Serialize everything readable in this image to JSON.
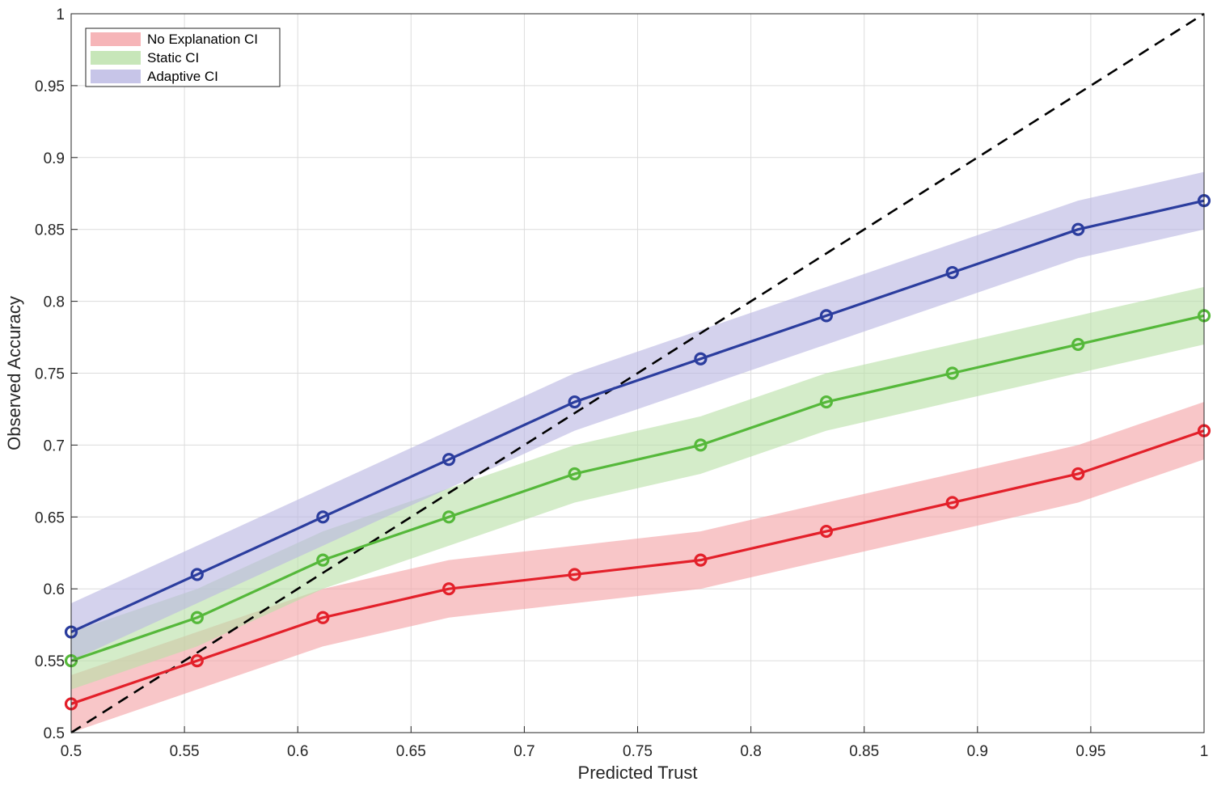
{
  "chart_data": {
    "type": "line",
    "title": "",
    "xlabel": "Predicted Trust",
    "ylabel": "Observed Accuracy",
    "xlim": [
      0.5,
      1
    ],
    "ylim": [
      0.5,
      1
    ],
    "grid": true,
    "legend_position": "top-left",
    "x": [
      0.5,
      0.5556,
      0.6111,
      0.6667,
      0.7222,
      0.7778,
      0.8333,
      0.8889,
      0.9444,
      1.0
    ],
    "xticks": [
      "0.5",
      "0.55",
      "0.6",
      "0.65",
      "0.7",
      "0.75",
      "0.8",
      "0.85",
      "0.9",
      "0.95",
      "1"
    ],
    "xtick_values": [
      0.5,
      0.55,
      0.6,
      0.65,
      0.7,
      0.75,
      0.8,
      0.85,
      0.9,
      0.95,
      1
    ],
    "yticks": [
      "0.5",
      "0.55",
      "0.6",
      "0.65",
      "0.7",
      "0.75",
      "0.8",
      "0.85",
      "0.9",
      "0.95",
      "1"
    ],
    "ytick_values": [
      0.5,
      0.55,
      0.6,
      0.65,
      0.7,
      0.75,
      0.8,
      0.85,
      0.9,
      0.95,
      1
    ],
    "reference_line": {
      "from": [
        0.5,
        0.5
      ],
      "to": [
        1,
        1
      ],
      "style": "dashed",
      "color": "#000000"
    },
    "series": [
      {
        "name": "No Explanation",
        "ci_label": "No Explanation CI",
        "color": "#e3202a",
        "ci_color": "#f4a3a6",
        "values": [
          0.52,
          0.55,
          0.58,
          0.6,
          0.61,
          0.62,
          0.64,
          0.66,
          0.68,
          0.71
        ],
        "ci_half_width": 0.02
      },
      {
        "name": "Static",
        "ci_label": "Static CI",
        "color": "#55b83a",
        "ci_color": "#b9e0a8",
        "values": [
          0.55,
          0.58,
          0.62,
          0.65,
          0.68,
          0.7,
          0.73,
          0.75,
          0.77,
          0.79
        ],
        "ci_half_width": 0.02
      },
      {
        "name": "Adaptive",
        "ci_label": "Adaptive CI",
        "color": "#2b3d9e",
        "ci_color": "#b9b6e2",
        "values": [
          0.57,
          0.61,
          0.65,
          0.69,
          0.73,
          0.76,
          0.79,
          0.82,
          0.85,
          0.87
        ],
        "ci_half_width": 0.02
      }
    ]
  }
}
